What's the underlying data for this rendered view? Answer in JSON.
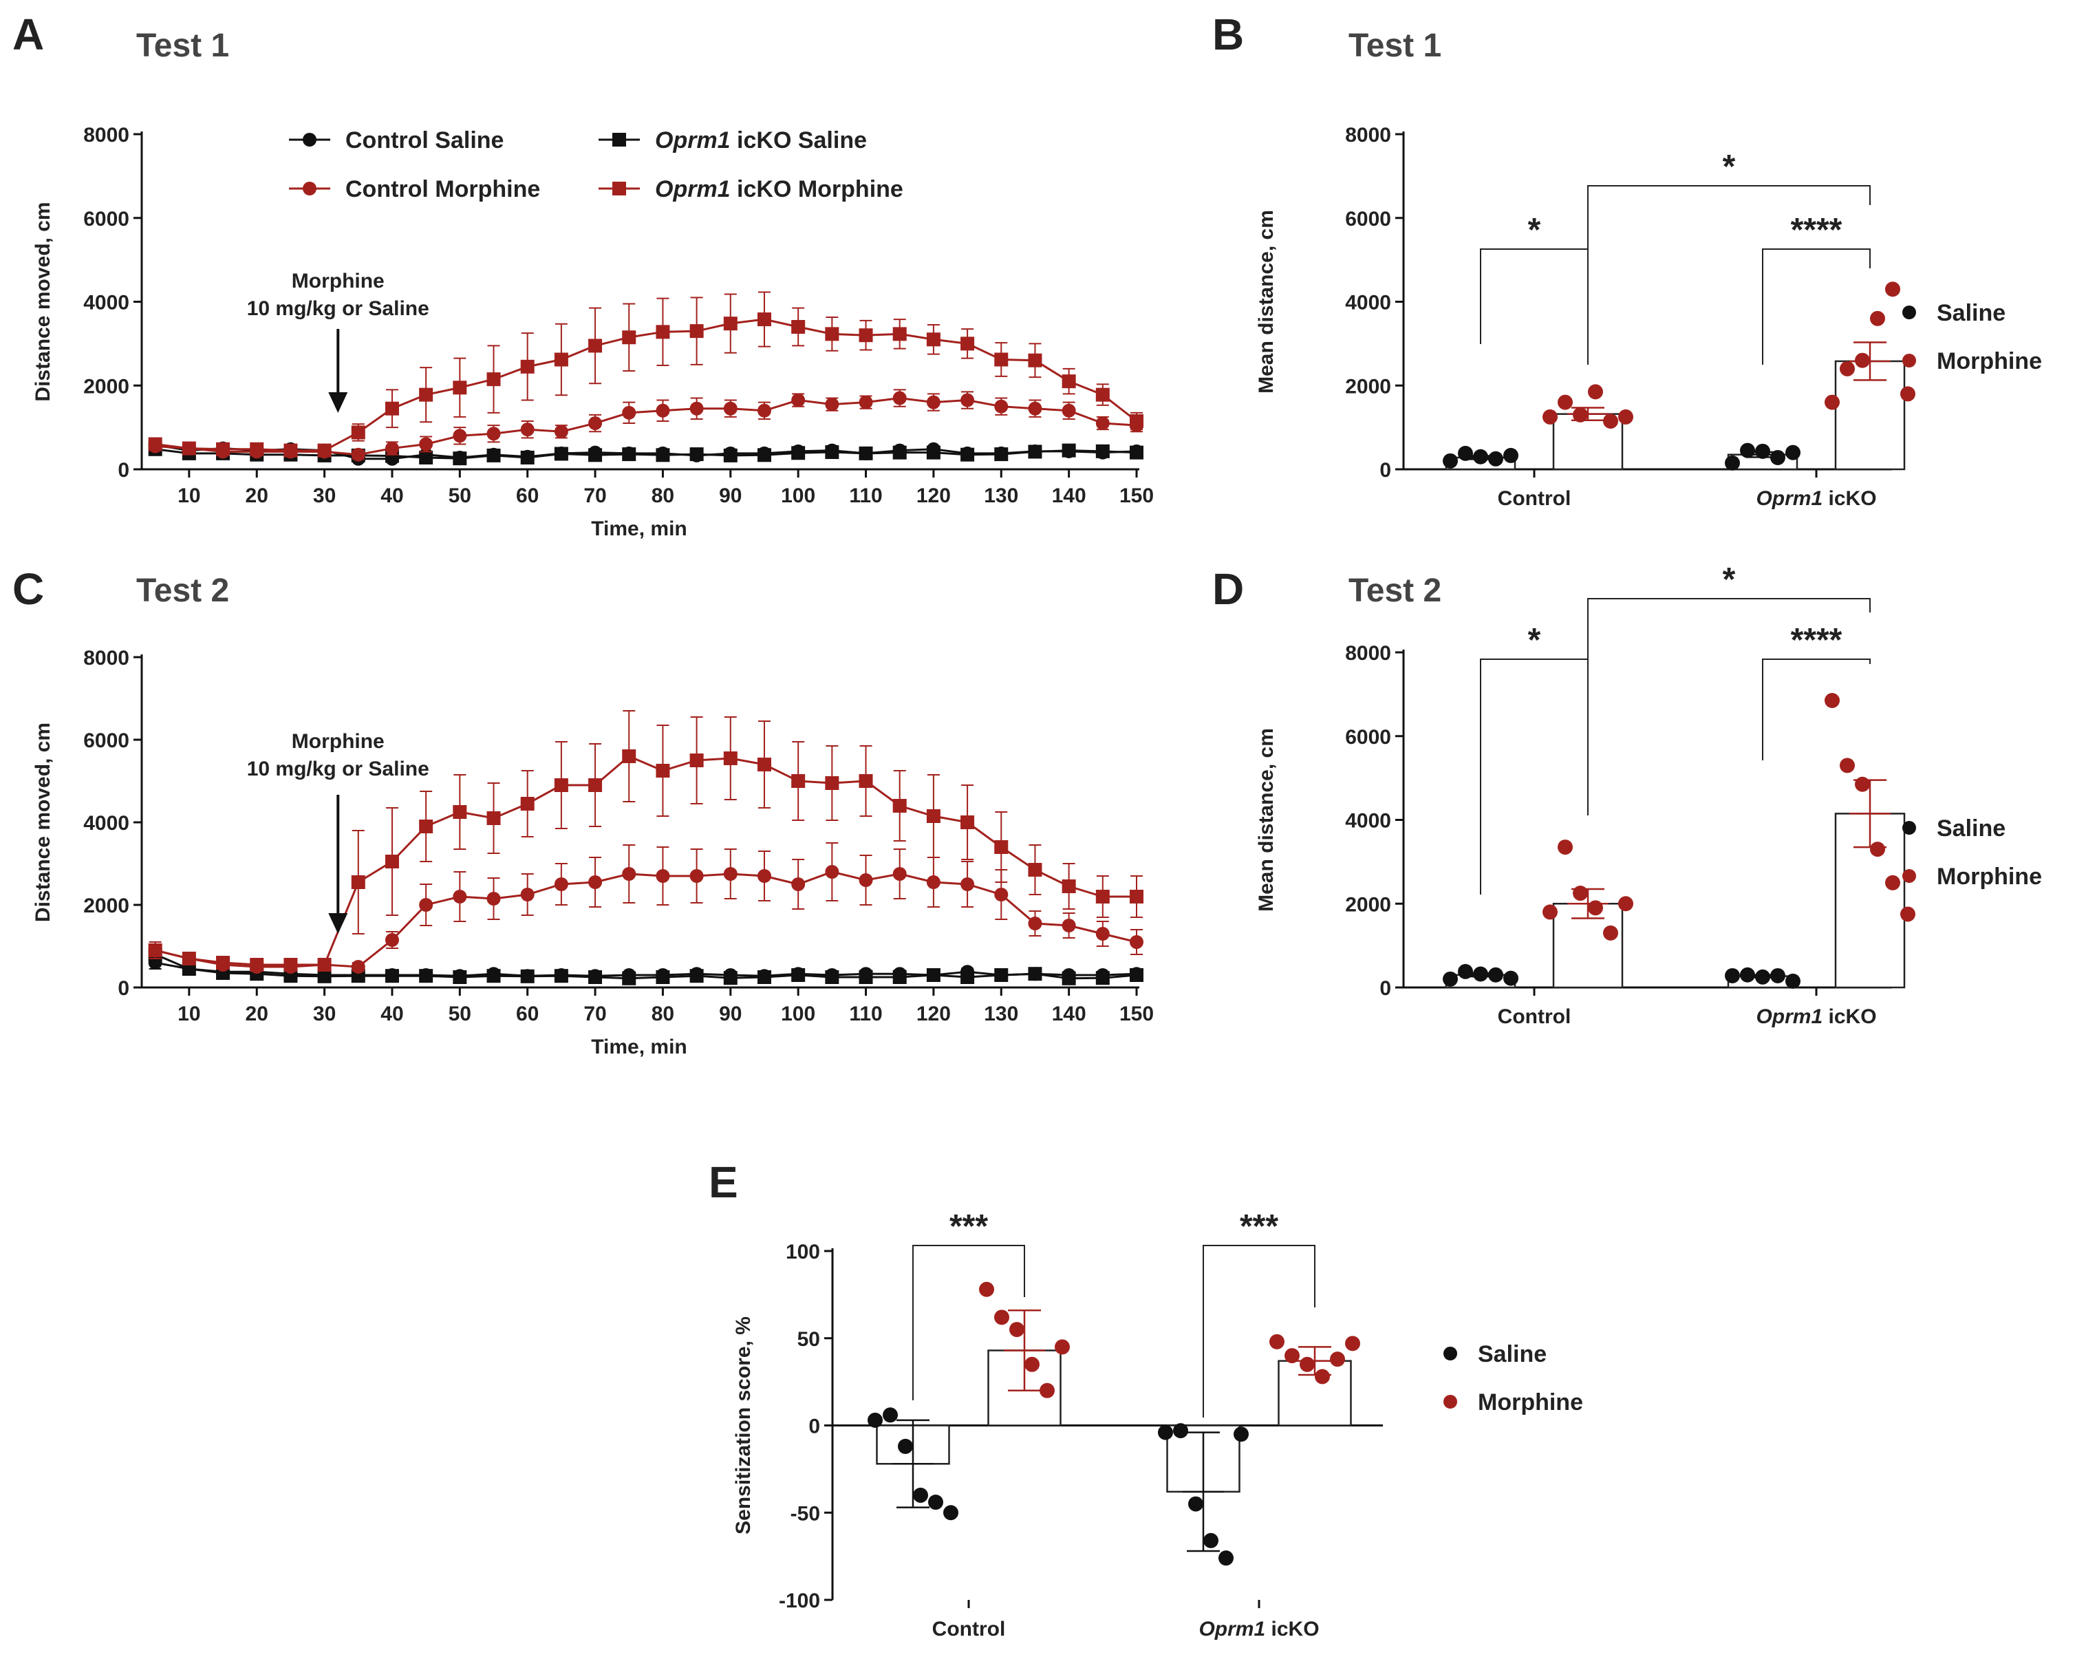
{
  "colors": {
    "saline": "#111111",
    "morphine": "#a3211d",
    "axis": "#111111"
  },
  "panels": {
    "A": {
      "letter": "A",
      "title": "Test 1"
    },
    "B": {
      "letter": "B",
      "title": "Test 1"
    },
    "C": {
      "letter": "C",
      "title": "Test 2"
    },
    "D": {
      "letter": "D",
      "title": "Test 2"
    },
    "E": {
      "letter": "E",
      "title": ""
    }
  },
  "chart_data": [
    {
      "id": "A",
      "type": "line",
      "title": "Test 1",
      "xlabel": "Time, min",
      "ylabel": "Distance moved, cm",
      "xlim": [
        3,
        150
      ],
      "ylim": [
        0,
        8000
      ],
      "xticks": [
        10,
        20,
        30,
        40,
        50,
        60,
        70,
        80,
        90,
        100,
        110,
        120,
        130,
        140,
        150
      ],
      "yticks": [
        0,
        2000,
        4000,
        6000,
        8000
      ],
      "annotation": {
        "line1": "Morphine",
        "line2": "10 mg/kg or Saline",
        "x": 32
      },
      "legend": [
        {
          "label_pre": "",
          "label_ital": "",
          "label_post": "Control Saline",
          "color": "#111111",
          "marker": "circle"
        },
        {
          "label_pre": "",
          "label_ital": "Oprm1",
          "label_post": " icKO Saline",
          "color": "#111111",
          "marker": "square"
        },
        {
          "label_pre": "",
          "label_ital": "",
          "label_post": "Control Morphine",
          "color": "#a3211d",
          "marker": "circle"
        },
        {
          "label_pre": "",
          "label_ital": "Oprm1",
          "label_post": " icKO Morphine",
          "color": "#a3211d",
          "marker": "square"
        }
      ],
      "x": [
        5,
        10,
        15,
        20,
        25,
        30,
        35,
        40,
        45,
        50,
        55,
        60,
        65,
        70,
        75,
        80,
        85,
        90,
        95,
        100,
        105,
        110,
        115,
        120,
        125,
        130,
        135,
        140,
        145,
        150
      ],
      "series": [
        {
          "name": "Control Saline",
          "color": "#111111",
          "marker": "circle",
          "values": [
            580,
            450,
            500,
            450,
            480,
            450,
            250,
            250,
            350,
            280,
            350,
            300,
            380,
            400,
            380,
            380,
            330,
            380,
            380,
            430,
            450,
            380,
            450,
            480,
            380,
            380,
            430,
            430,
            400,
            430
          ],
          "errors": [
            60,
            50,
            50,
            40,
            40,
            40,
            40,
            40,
            50,
            40,
            40,
            40,
            40,
            40,
            40,
            40,
            40,
            40,
            40,
            40,
            40,
            40,
            40,
            40,
            40,
            40,
            40,
            40,
            40,
            40
          ]
        },
        {
          "name": "Oprm1 icKO Saline",
          "color": "#111111",
          "marker": "square",
          "values": [
            480,
            380,
            380,
            350,
            350,
            330,
            330,
            320,
            280,
            260,
            330,
            280,
            370,
            340,
            360,
            340,
            360,
            330,
            340,
            390,
            410,
            380,
            400,
            400,
            350,
            360,
            420,
            450,
            430,
            400
          ],
          "errors": [
            50,
            40,
            40,
            40,
            40,
            40,
            40,
            40,
            40,
            40,
            40,
            40,
            40,
            40,
            40,
            40,
            40,
            40,
            40,
            40,
            40,
            40,
            40,
            40,
            40,
            40,
            40,
            40,
            40,
            40
          ]
        },
        {
          "name": "Control Morphine",
          "color": "#a3211d",
          "marker": "circle",
          "values": [
            550,
            500,
            420,
            420,
            420,
            420,
            350,
            500,
            600,
            800,
            850,
            950,
            900,
            1100,
            1350,
            1400,
            1450,
            1450,
            1400,
            1650,
            1550,
            1600,
            1700,
            1600,
            1650,
            1500,
            1450,
            1400,
            1100,
            1050
          ],
          "errors": [
            60,
            60,
            50,
            50,
            50,
            50,
            100,
            150,
            180,
            200,
            200,
            200,
            150,
            200,
            250,
            250,
            250,
            200,
            200,
            150,
            150,
            150,
            200,
            200,
            200,
            200,
            200,
            200,
            150,
            150
          ]
        },
        {
          "name": "Oprm1 icKO Morphine",
          "color": "#a3211d",
          "marker": "square",
          "values": [
            600,
            500,
            480,
            480,
            450,
            450,
            880,
            1450,
            1780,
            1950,
            2150,
            2450,
            2620,
            2950,
            3150,
            3280,
            3300,
            3480,
            3580,
            3400,
            3230,
            3200,
            3230,
            3100,
            3000,
            2620,
            2600,
            2100,
            1780,
            1150
          ],
          "errors": [
            60,
            60,
            50,
            50,
            50,
            50,
            200,
            450,
            650,
            700,
            800,
            800,
            850,
            900,
            800,
            800,
            800,
            700,
            650,
            450,
            400,
            350,
            350,
            350,
            350,
            400,
            400,
            300,
            250,
            200
          ]
        }
      ]
    },
    {
      "id": "B",
      "type": "bar",
      "title": "Test 1",
      "ylabel": "Mean distance, cm",
      "ylim": [
        0,
        8000
      ],
      "yticks": [
        0,
        2000,
        4000,
        6000,
        8000
      ],
      "groups": [
        {
          "label_pre": "Control",
          "label_ital": "",
          "label_post": ""
        },
        {
          "label_pre": "",
          "label_ital": "Oprm1",
          "label_post": " icKO"
        }
      ],
      "legend": [
        {
          "label": "Saline",
          "color": "#111111"
        },
        {
          "label": "Morphine",
          "color": "#a3211d"
        }
      ],
      "bars": [
        {
          "group": 0,
          "condition": "Saline",
          "mean": 280,
          "sem": 40,
          "points": [
            200,
            380,
            300,
            250,
            330
          ]
        },
        {
          "group": 0,
          "condition": "Morphine",
          "mean": 1320,
          "sem": 150,
          "points": [
            1250,
            1600,
            1300,
            1850,
            1150,
            1250
          ]
        },
        {
          "group": 1,
          "condition": "Saline",
          "mean": 350,
          "sem": 60,
          "points": [
            150,
            450,
            430,
            280,
            400
          ]
        },
        {
          "group": 1,
          "condition": "Morphine",
          "mean": 2580,
          "sem": 450,
          "points": [
            1600,
            2400,
            2600,
            3600,
            4300,
            1800
          ]
        }
      ],
      "significance": [
        {
          "from": [
            0,
            0
          ],
          "to": [
            0,
            1
          ],
          "label": "*"
        },
        {
          "from": [
            1,
            0
          ],
          "to": [
            1,
            1
          ],
          "label": "****"
        },
        {
          "from": [
            0,
            1
          ],
          "to": [
            1,
            1
          ],
          "label": "*"
        }
      ]
    },
    {
      "id": "C",
      "type": "line",
      "title": "Test 2",
      "xlabel": "Time, min",
      "ylabel": "Distance moved, cm",
      "xlim": [
        3,
        150
      ],
      "ylim": [
        0,
        8000
      ],
      "xticks": [
        10,
        20,
        30,
        40,
        50,
        60,
        70,
        80,
        90,
        100,
        110,
        120,
        130,
        140,
        150
      ],
      "yticks": [
        0,
        2000,
        4000,
        6000,
        8000
      ],
      "annotation": {
        "line1": "Morphine",
        "line2": "10 mg/kg or Saline",
        "x": 32
      },
      "x": [
        5,
        10,
        15,
        20,
        25,
        30,
        35,
        40,
        45,
        50,
        55,
        60,
        65,
        70,
        75,
        80,
        85,
        90,
        95,
        100,
        105,
        110,
        115,
        120,
        125,
        130,
        135,
        140,
        145,
        150
      ],
      "series": [
        {
          "name": "Control Saline",
          "color": "#111111",
          "marker": "circle",
          "values": [
            600,
            450,
            380,
            380,
            330,
            300,
            300,
            300,
            300,
            280,
            330,
            280,
            300,
            280,
            300,
            300,
            330,
            300,
            280,
            330,
            300,
            330,
            330,
            300,
            380,
            300,
            330,
            300,
            300,
            330
          ],
          "errors": [
            150,
            100,
            100,
            80,
            80,
            80,
            80,
            80,
            80,
            80,
            80,
            80,
            80,
            80,
            80,
            80,
            80,
            80,
            80,
            80,
            80,
            80,
            80,
            80,
            80,
            80,
            80,
            80,
            80,
            80
          ]
        },
        {
          "name": "Oprm1 icKO Saline",
          "color": "#111111",
          "marker": "square",
          "values": [
            800,
            450,
            350,
            330,
            280,
            270,
            280,
            280,
            280,
            250,
            280,
            270,
            280,
            250,
            220,
            250,
            280,
            230,
            250,
            300,
            250,
            250,
            250,
            300,
            250,
            300,
            330,
            220,
            230,
            300
          ],
          "errors": [
            150,
            100,
            80,
            80,
            80,
            80,
            80,
            80,
            80,
            80,
            80,
            80,
            80,
            80,
            80,
            80,
            80,
            80,
            80,
            80,
            80,
            80,
            80,
            80,
            80,
            80,
            80,
            80,
            80,
            80
          ]
        },
        {
          "name": "Control Morphine",
          "color": "#a3211d",
          "marker": "circle",
          "values": [
            900,
            700,
            550,
            500,
            500,
            550,
            500,
            1150,
            2000,
            2200,
            2150,
            2250,
            2500,
            2550,
            2750,
            2700,
            2700,
            2750,
            2700,
            2500,
            2800,
            2600,
            2750,
            2550,
            2500,
            2250,
            1550,
            1500,
            1300,
            1100
          ],
          "errors": [
            150,
            150,
            100,
            100,
            100,
            100,
            100,
            200,
            500,
            600,
            500,
            500,
            500,
            600,
            700,
            700,
            650,
            600,
            600,
            600,
            700,
            600,
            600,
            600,
            550,
            600,
            300,
            300,
            300,
            300
          ]
        },
        {
          "name": "Oprm1 icKO Morphine",
          "color": "#a3211d",
          "marker": "square",
          "values": [
            900,
            700,
            600,
            550,
            550,
            550,
            2550,
            3050,
            3900,
            4250,
            4100,
            4450,
            4900,
            4900,
            5600,
            5250,
            5500,
            5550,
            5400,
            5000,
            4950,
            5000,
            4400,
            4150,
            4000,
            3400,
            2850,
            2450,
            2200,
            2200
          ],
          "errors": [
            200,
            150,
            100,
            100,
            100,
            100,
            1250,
            1300,
            850,
            900,
            850,
            800,
            1050,
            1000,
            1100,
            1100,
            1050,
            1000,
            1050,
            950,
            900,
            850,
            850,
            1000,
            900,
            850,
            600,
            550,
            500,
            500
          ]
        }
      ]
    },
    {
      "id": "D",
      "type": "bar",
      "title": "Test 2",
      "ylabel": "Mean distance, cm",
      "ylim": [
        0,
        8000
      ],
      "yticks": [
        0,
        2000,
        4000,
        6000,
        8000
      ],
      "groups": [
        {
          "label_pre": "Control",
          "label_ital": "",
          "label_post": ""
        },
        {
          "label_pre": "",
          "label_ital": "Oprm1",
          "label_post": " icKO"
        }
      ],
      "legend": [
        {
          "label": "Saline",
          "color": "#111111"
        },
        {
          "label": "Morphine",
          "color": "#a3211d"
        }
      ],
      "bars": [
        {
          "group": 0,
          "condition": "Saline",
          "mean": 300,
          "sem": 40,
          "points": [
            200,
            380,
            320,
            300,
            220
          ]
        },
        {
          "group": 0,
          "condition": "Morphine",
          "mean": 2000,
          "sem": 350,
          "points": [
            1800,
            3350,
            2250,
            1900,
            1300,
            2000
          ]
        },
        {
          "group": 1,
          "condition": "Saline",
          "mean": 270,
          "sem": 30,
          "points": [
            280,
            300,
            250,
            280,
            150
          ]
        },
        {
          "group": 1,
          "condition": "Morphine",
          "mean": 4150,
          "sem": 800,
          "points": [
            6850,
            5300,
            4850,
            3300,
            2500,
            1750
          ]
        }
      ],
      "significance": [
        {
          "from": [
            0,
            0
          ],
          "to": [
            0,
            1
          ],
          "label": "*"
        },
        {
          "from": [
            1,
            0
          ],
          "to": [
            1,
            1
          ],
          "label": "****"
        },
        {
          "from": [
            0,
            1
          ],
          "to": [
            1,
            1
          ],
          "label": "*"
        }
      ]
    },
    {
      "id": "E",
      "type": "bar",
      "title": "",
      "ylabel": "Sensitization score, %",
      "ylim": [
        -100,
        100
      ],
      "yticks": [
        -100,
        -50,
        0,
        50,
        100
      ],
      "groups": [
        {
          "label_pre": "Control",
          "label_ital": "",
          "label_post": ""
        },
        {
          "label_pre": "",
          "label_ital": "Oprm1",
          "label_post": " icKO"
        }
      ],
      "legend": [
        {
          "label": "Saline",
          "color": "#111111"
        },
        {
          "label": "Morphine",
          "color": "#a3211d"
        }
      ],
      "bars": [
        {
          "group": 0,
          "condition": "Saline",
          "mean": -22,
          "sd": 25,
          "points": [
            3,
            6,
            -12,
            -40,
            -44,
            -50
          ]
        },
        {
          "group": 0,
          "condition": "Morphine",
          "mean": 43,
          "sd": 23,
          "points": [
            78,
            62,
            55,
            35,
            20,
            45
          ]
        },
        {
          "group": 1,
          "condition": "Saline",
          "mean": -38,
          "sd": 34,
          "points": [
            -4,
            -3,
            -45,
            -66,
            -76,
            -5
          ]
        },
        {
          "group": 1,
          "condition": "Morphine",
          "mean": 37,
          "sd": 8,
          "points": [
            48,
            40,
            35,
            28,
            38,
            47
          ]
        }
      ],
      "significance": [
        {
          "from": [
            0,
            0
          ],
          "to": [
            0,
            1
          ],
          "label": "***"
        },
        {
          "from": [
            1,
            0
          ],
          "to": [
            1,
            1
          ],
          "label": "***"
        }
      ]
    }
  ]
}
